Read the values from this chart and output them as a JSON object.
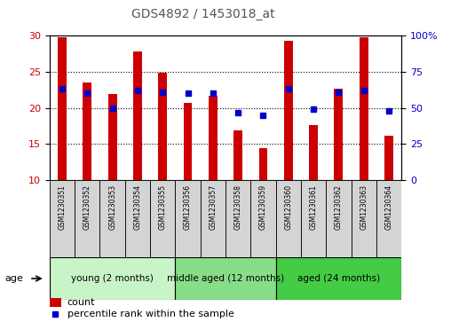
{
  "title": "GDS4892 / 1453018_at",
  "samples": [
    "GSM1230351",
    "GSM1230352",
    "GSM1230353",
    "GSM1230354",
    "GSM1230355",
    "GSM1230356",
    "GSM1230357",
    "GSM1230358",
    "GSM1230359",
    "GSM1230360",
    "GSM1230361",
    "GSM1230362",
    "GSM1230363",
    "GSM1230364"
  ],
  "counts": [
    29.7,
    23.5,
    21.9,
    27.8,
    24.9,
    20.7,
    21.7,
    16.9,
    14.5,
    29.2,
    17.6,
    22.7,
    29.8,
    16.2
  ],
  "percentiles": [
    63,
    60,
    50,
    62,
    61,
    60,
    60,
    47,
    45,
    63,
    49,
    61,
    62,
    48
  ],
  "ylim_left": [
    10,
    30
  ],
  "ylim_right": [
    0,
    100
  ],
  "yticks_left": [
    10,
    15,
    20,
    25,
    30
  ],
  "yticks_right": [
    0,
    25,
    50,
    75,
    100
  ],
  "bar_color": "#cc0000",
  "dot_color": "#0000cc",
  "bar_width": 0.35,
  "groups": [
    {
      "label": "young (2 months)",
      "start": 0,
      "end": 4
    },
    {
      "label": "middle aged (12 months)",
      "start": 5,
      "end": 8
    },
    {
      "label": "aged (24 months)",
      "start": 9,
      "end": 13
    }
  ],
  "group_bg_colors": [
    "#c8f5c8",
    "#88dd88",
    "#44cc44"
  ],
  "sample_cell_color": "#d4d4d4",
  "age_label": "age",
  "legend_count_label": "count",
  "legend_percentile_label": "percentile rank within the sample",
  "tick_label_color_left": "#cc0000",
  "tick_label_color_right": "#0000cc",
  "figure_bg": "#ffffff",
  "title_color": "#555555"
}
